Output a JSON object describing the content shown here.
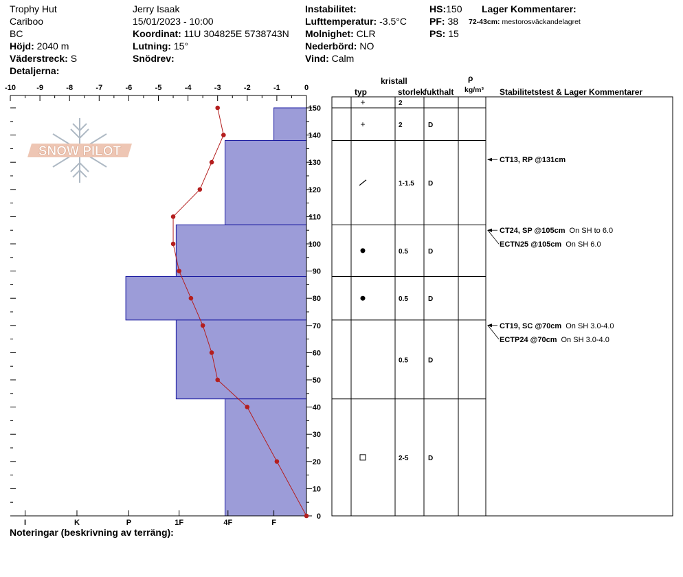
{
  "header": {
    "location": "Trophy Hut",
    "region": "Cariboo",
    "province": "BC",
    "elevation_label": "Höjd:",
    "elevation": "2040 m",
    "aspect_label": "Väderstreck:",
    "aspect": "S",
    "details_label": "Detaljerna:",
    "observer": "Jerry Isaak",
    "datetime": "15/01/2023 - 10:00",
    "coord_label": "Koordinat:",
    "coord": "11U 304825E 5738743N",
    "slope_label": "Lutning:",
    "slope": "15°",
    "drift_label": "Snödrev:",
    "drift": "",
    "instability_label": "Instabilitet:",
    "instability": "",
    "airtemp_label": "Lufttemperatur:",
    "airtemp": "-3.5°C",
    "sky_label": "Molnighet:",
    "sky": "CLR",
    "precip_label": "Nederbörd:",
    "precip": "NO",
    "wind_label": "Vind:",
    "wind": "Calm",
    "hs_label": "HS:",
    "hs": "150",
    "pf_label": "PF:",
    "pf": "38",
    "ps_label": "PS:",
    "ps": "15",
    "layer_comments_label": "Lager Kommentarer:",
    "layer_comment_depth": "72-43cm:",
    "layer_comment_text": "mestorosväckandelagret"
  },
  "logo": {
    "text": "SNOW PILOT"
  },
  "footer": {
    "notes_label": "Noteringar (beskrivning av terräng):"
  },
  "table": {
    "crystal_header": "kristall",
    "type_header": "typ",
    "size_header": "storlek",
    "moisture_header": "fukthalt",
    "density_symbol": "ρ",
    "density_unit": "kg/m³",
    "stability_header": "Stabilitetstest & Lager Kommentarer",
    "layers": [
      {
        "top": 150,
        "bottom": 138,
        "type": "+",
        "size": "2",
        "moisture": "D"
      },
      {
        "top": 138,
        "bottom": 107,
        "type": "/",
        "size": "1-1.5",
        "moisture": "D"
      },
      {
        "top": 107,
        "bottom": 88,
        "type": "●",
        "size": "0.5",
        "moisture": "D"
      },
      {
        "top": 88,
        "bottom": 72,
        "type": "●",
        "size": "0.5",
        "moisture": "D"
      },
      {
        "top": 72,
        "bottom": 43,
        "type": "",
        "size": "0.5",
        "moisture": "D"
      },
      {
        "top": 43,
        "bottom": 0,
        "type": "□",
        "size": "2-5",
        "moisture": "D"
      }
    ],
    "surface_layer": {
      "type": "+",
      "size": "2",
      "moisture": ""
    },
    "tests": [
      {
        "depth": 131,
        "name": "CT13, RP @131cm",
        "note": ""
      },
      {
        "depth": 105,
        "name": "CT24, SP @105cm",
        "note": "On SH to 6.0"
      },
      {
        "depth": 105,
        "name": "ECTN25 @105cm",
        "note": "On SH 6.0"
      },
      {
        "depth": 70,
        "name": "CT19, SC @70cm",
        "note": "On SH 3.0-4.0"
      },
      {
        "depth": 70,
        "name": "ECTP24 @70cm",
        "note": "On SH 3.0-4.0"
      }
    ]
  },
  "chart_data": {
    "type": "snow-profile",
    "temperature_axis": {
      "ticks": [
        -10,
        -9,
        -8,
        -7,
        -6,
        -5,
        -4,
        -3,
        -2,
        -1,
        0
      ],
      "range": [
        -10,
        0
      ]
    },
    "height_axis": {
      "ticks": [
        0,
        10,
        20,
        30,
        40,
        50,
        60,
        70,
        80,
        90,
        100,
        110,
        120,
        130,
        140,
        150
      ],
      "range": [
        0,
        150
      ]
    },
    "hardness_axis": {
      "labels": [
        "I",
        "K",
        "P",
        "1F",
        "4F",
        "F"
      ],
      "positions": [
        -9.5,
        -7.75,
        -6,
        -4.3,
        -2.65,
        -1.1
      ]
    },
    "temperature_profile": {
      "color": "#b41e1e",
      "points": [
        [
          -3,
          150
        ],
        [
          -2.8,
          140
        ],
        [
          -3.2,
          130
        ],
        [
          -3.6,
          120
        ],
        [
          -4.5,
          110
        ],
        [
          -4.5,
          100
        ],
        [
          -4.3,
          90
        ],
        [
          -3.9,
          80
        ],
        [
          -3.5,
          70
        ],
        [
          -3.2,
          60
        ],
        [
          -3,
          50
        ],
        [
          -2,
          40
        ],
        [
          -1,
          20
        ],
        [
          0,
          0
        ]
      ]
    },
    "hardness_profile": {
      "color": "#9c9cd8",
      "layers": [
        {
          "top": 150,
          "bottom": 138,
          "value": -1.1
        },
        {
          "top": 138,
          "bottom": 107,
          "value": -2.75
        },
        {
          "top": 107,
          "bottom": 88,
          "value": -4.4
        },
        {
          "top": 88,
          "bottom": 72,
          "value": -6.1
        },
        {
          "top": 72,
          "bottom": 43,
          "value": -4.4
        },
        {
          "top": 43,
          "bottom": 0,
          "value": -2.75
        }
      ]
    }
  }
}
